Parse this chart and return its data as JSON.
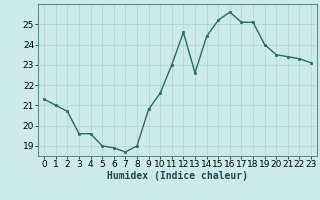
{
  "x": [
    0,
    1,
    2,
    3,
    4,
    5,
    6,
    7,
    8,
    9,
    10,
    11,
    12,
    13,
    14,
    15,
    16,
    17,
    18,
    19,
    20,
    21,
    22,
    23
  ],
  "y": [
    21.3,
    21.0,
    20.7,
    19.6,
    19.6,
    19.0,
    18.9,
    18.7,
    19.0,
    20.8,
    21.6,
    23.0,
    24.6,
    22.6,
    24.4,
    25.2,
    25.6,
    25.1,
    25.1,
    24.0,
    23.5,
    23.4,
    23.3,
    23.1
  ],
  "line_color": "#2e6b5e",
  "marker": "s",
  "marker_size": 2,
  "bg_color": "#cceaea",
  "grid_color": "#b0d4d4",
  "xlabel": "Humidex (Indice chaleur)",
  "xlim": [
    -0.5,
    23.5
  ],
  "ylim": [
    18.5,
    26.0
  ],
  "yticks": [
    19,
    20,
    21,
    22,
    23,
    24,
    25
  ],
  "xticks": [
    0,
    1,
    2,
    3,
    4,
    5,
    6,
    7,
    8,
    9,
    10,
    11,
    12,
    13,
    14,
    15,
    16,
    17,
    18,
    19,
    20,
    21,
    22,
    23
  ],
  "xlabel_fontsize": 7,
  "tick_fontsize": 6.5,
  "line_width": 1.0,
  "spine_color": "#5a9090"
}
